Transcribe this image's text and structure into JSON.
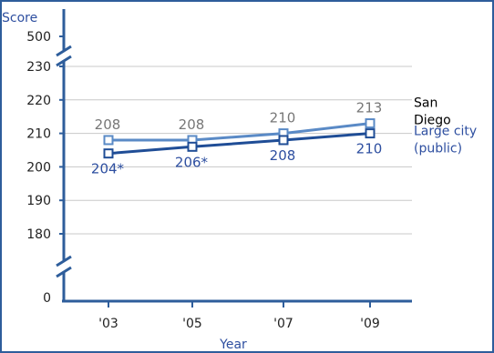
{
  "chart_data": {
    "type": "line",
    "ylabel": "Score",
    "xlabel": "Year",
    "categories": [
      "'03",
      "'05",
      "'07",
      "'09"
    ],
    "y_ticks": [
      0,
      180,
      190,
      200,
      210,
      220,
      230,
      500
    ],
    "ylim_shown": [
      180,
      230
    ],
    "axis_breaks": "between 230 and 500, and between 0 and 180",
    "grid": true,
    "series": [
      {
        "name": "San Diego",
        "name_lines": [
          "San",
          "Diego"
        ],
        "values": [
          208,
          208,
          210,
          213
        ],
        "labels": [
          "208",
          "208",
          "210",
          "213"
        ],
        "label_position": "above",
        "color": "#5a8ac6",
        "label_color": "#777777",
        "name_color": "#000000"
      },
      {
        "name": "Large city (public)",
        "name_lines": [
          "Large city",
          "(public)"
        ],
        "values": [
          204,
          206,
          208,
          210
        ],
        "labels": [
          "204*",
          "206*",
          "208",
          "210"
        ],
        "label_position": "below",
        "color": "#1f4d96",
        "label_color": "#2e4fa0",
        "name_color": "#2e4fa0"
      }
    ]
  },
  "colors": {
    "frame": "#2e5d9b",
    "axis": "#2e5d9b",
    "grid": "#c8c8c8"
  }
}
